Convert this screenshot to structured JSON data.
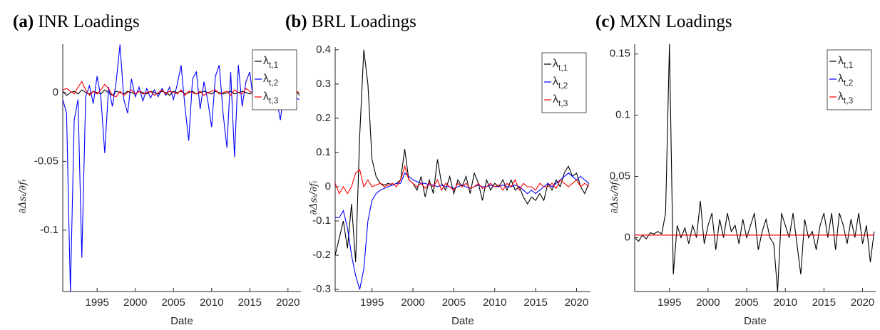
{
  "chart_data": [
    {
      "type": "line",
      "panel_label": "(a)",
      "title": "INR Loadings",
      "x_label": "Date",
      "y_label": "∂Δsₜ/∂fₜ",
      "xlim": [
        1990.5,
        2021.7
      ],
      "xticks": [
        1995,
        2000,
        2005,
        2010,
        2015,
        2020
      ],
      "ylim": [
        -0.1446,
        0.0352
      ],
      "yticks": [
        -0.1,
        -0.05,
        0
      ],
      "legend": "upper right",
      "x": [
        1990.5,
        1991,
        1991.5,
        1992,
        1992.5,
        1993,
        1993.5,
        1994,
        1994.5,
        1995,
        1995.5,
        1996,
        1996.5,
        1997,
        1997.5,
        1998,
        1998.5,
        1999,
        1999.5,
        2000,
        2000.5,
        2001,
        2001.5,
        2002,
        2002.5,
        2003,
        2003.5,
        2004,
        2004.5,
        2005,
        2005.5,
        2006,
        2006.5,
        2007,
        2007.5,
        2008,
        2008.5,
        2009,
        2009.5,
        2010,
        2010.5,
        2011,
        2011.5,
        2012,
        2012.5,
        2013,
        2013.5,
        2014,
        2014.5,
        2015,
        2015.5,
        2016,
        2016.5,
        2017,
        2017.5,
        2018,
        2018.5,
        2019,
        2019.5,
        2020,
        2020.5,
        2021,
        2021.5
      ],
      "series": [
        {
          "name": "λt,1",
          "color": "#000000",
          "values": [
            0.001,
            -0.002,
            0.0,
            0.001,
            -0.001,
            0.002,
            0.0,
            -0.001,
            0.001,
            0.0,
            -0.001,
            0.002,
            0.0,
            -0.002,
            0.001,
            0.0,
            -0.001,
            0.001,
            0.0,
            -0.001,
            0.001,
            0.0,
            -0.001,
            0.001,
            0.0,
            -0.001,
            0.001,
            0.0,
            -0.002,
            0.001,
            0.0,
            0.001,
            -0.001,
            0.0,
            0.001,
            -0.001,
            0.0,
            0.001,
            0.0,
            -0.001,
            0.001,
            0.0,
            -0.001,
            0.0,
            0.001,
            -0.001,
            0.0,
            0.001,
            0.0,
            -0.001,
            0.001,
            0.0,
            -0.001,
            0.001,
            0.0,
            -0.001,
            0.001,
            0.0,
            0.001,
            -0.001,
            0.0,
            0.002,
            -0.002
          ]
        },
        {
          "name": "λt,2",
          "color": "#0000ff",
          "values": [
            -0.005,
            -0.015,
            -0.145,
            -0.02,
            -0.005,
            -0.12,
            -0.003,
            0.005,
            -0.008,
            0.012,
            -0.004,
            -0.044,
            0.004,
            -0.01,
            0.008,
            0.035,
            -0.005,
            -0.015,
            0.01,
            -0.003,
            0.004,
            -0.006,
            0.003,
            -0.004,
            0.002,
            -0.003,
            0.003,
            -0.002,
            0.004,
            -0.005,
            0.006,
            0.02,
            -0.01,
            -0.035,
            0.01,
            0.015,
            -0.012,
            0.008,
            -0.006,
            -0.025,
            0.012,
            0.02,
            -0.015,
            -0.04,
            0.015,
            -0.047,
            0.02,
            -0.01,
            0.008,
            0.015,
            -0.008,
            -0.01,
            0.01,
            0.02,
            -0.005,
            0.003,
            -0.004,
            -0.02,
            0.002,
            -0.003,
            0.001,
            -0.004,
            -0.005
          ]
        },
        {
          "name": "λt,3",
          "color": "#ff0000",
          "values": [
            0.002,
            0.003,
            0.001,
            -0.001,
            0.004,
            0.008,
            0.002,
            -0.002,
            0.001,
            -0.001,
            0.002,
            0.006,
            0.003,
            -0.002,
            -0.003,
            0.001,
            -0.002,
            0.0,
            0.002,
            -0.001,
            0.001,
            -0.001,
            0.0,
            0.001,
            -0.002,
            0.0,
            0.002,
            -0.001,
            0.001,
            0.0,
            -0.001,
            0.002,
            -0.002,
            0.001,
            0.0,
            -0.001,
            0.001,
            -0.002,
            0.0,
            0.001,
            0.002,
            -0.001,
            0.0,
            0.001,
            -0.002,
            0.002,
            0.0,
            -0.001,
            0.003,
            0.001,
            -0.001,
            0.001,
            0.0,
            -0.002,
            0.001,
            0.0,
            0.002,
            -0.001,
            0.0,
            0.001,
            0.002,
            0.001,
            0.0
          ]
        }
      ]
    },
    {
      "type": "line",
      "panel_label": "(b)",
      "title": "BRL Loadings",
      "x_label": "Date",
      "y_label": "∂Δsₜ/∂fₜ",
      "xlim": [
        1990.5,
        2021.7
      ],
      "xticks": [
        1995,
        2000,
        2005,
        2010,
        2015,
        2020
      ],
      "ylim": [
        -0.306,
        0.408
      ],
      "yticks": [
        -0.3,
        -0.2,
        -0.1,
        0,
        0.1,
        0.2,
        0.3,
        0.4
      ],
      "legend": "upper right",
      "x": [
        1990.5,
        1991,
        1991.5,
        1992,
        1992.5,
        1993,
        1993.5,
        1994,
        1994.5,
        1995,
        1995.5,
        1996,
        1996.5,
        1997,
        1997.5,
        1998,
        1998.5,
        1999,
        1999.5,
        2000,
        2000.5,
        2001,
        2001.5,
        2002,
        2002.5,
        2003,
        2003.5,
        2004,
        2004.5,
        2005,
        2005.5,
        2006,
        2006.5,
        2007,
        2007.5,
        2008,
        2008.5,
        2009,
        2009.5,
        2010,
        2010.5,
        2011,
        2011.5,
        2012,
        2012.5,
        2013,
        2013.5,
        2014,
        2014.5,
        2015,
        2015.5,
        2016,
        2016.5,
        2017,
        2017.5,
        2018,
        2018.5,
        2019,
        2019.5,
        2020,
        2020.5,
        2021,
        2021.5
      ],
      "series": [
        {
          "name": "λt,1",
          "color": "#000000",
          "values": [
            -0.2,
            -0.15,
            -0.1,
            -0.18,
            -0.05,
            -0.22,
            0.15,
            0.4,
            0.3,
            0.08,
            0.03,
            0.01,
            0.005,
            0.01,
            0.005,
            0.01,
            0.02,
            0.11,
            0.02,
            0.01,
            -0.01,
            0.03,
            -0.03,
            0.02,
            -0.02,
            0.08,
            0.01,
            -0.01,
            0.03,
            -0.02,
            0.02,
            0.0,
            0.03,
            -0.02,
            0.04,
            0.01,
            -0.04,
            0.02,
            -0.01,
            0.01,
            0.0,
            0.02,
            -0.01,
            0.02,
            -0.01,
            0.0,
            -0.03,
            -0.05,
            -0.03,
            -0.04,
            -0.02,
            -0.04,
            0.01,
            -0.01,
            0.02,
            0.0,
            0.04,
            0.06,
            0.03,
            0.04,
            0.0,
            -0.02,
            0.01
          ]
        },
        {
          "name": "λt,2",
          "color": "#0000ff",
          "values": [
            -0.09,
            -0.09,
            -0.07,
            -0.12,
            -0.2,
            -0.26,
            -0.3,
            -0.24,
            -0.1,
            -0.04,
            -0.02,
            -0.01,
            -0.005,
            0,
            0.005,
            0.01,
            0.01,
            0.04,
            0.03,
            0.02,
            0.015,
            0.01,
            0.01,
            0.005,
            0.005,
            0,
            0.005,
            0,
            0,
            -0.005,
            0,
            0.005,
            0,
            -0.005,
            0,
            0.005,
            0,
            0,
            0.005,
            0,
            0,
            0.005,
            0,
            0,
            0.005,
            0,
            -0.01,
            -0.02,
            -0.01,
            -0.02,
            -0.01,
            0,
            0.01,
            0,
            0.01,
            0.02,
            0.03,
            0.04,
            0.03,
            0.02,
            0.03,
            0.02,
            0.01
          ]
        },
        {
          "name": "λt,3",
          "color": "#ff0000",
          "values": [
            0.01,
            -0.02,
            0,
            -0.02,
            0,
            0.04,
            0.05,
            0,
            0.02,
            0,
            0.005,
            0.01,
            0,
            0.005,
            0.01,
            0,
            0.02,
            0.06,
            0.02,
            0.01,
            0,
            0.01,
            -0.005,
            0.01,
            0,
            0.02,
            -0.01,
            0.01,
            0,
            -0.01,
            0.01,
            0,
            0.01,
            -0.005,
            0,
            0.01,
            -0.005,
            0,
            0.01,
            0,
            0.005,
            -0.01,
            0.01,
            0,
            0.02,
            -0.01,
            0.01,
            0,
            0,
            -0.01,
            0.01,
            0,
            0,
            0.01,
            -0.005,
            0.02,
            0.01,
            0,
            0.01,
            0.02,
            0,
            0.01,
            0
          ]
        }
      ]
    },
    {
      "type": "line",
      "panel_label": "(c)",
      "title": "MXN Loadings",
      "x_label": "Date",
      "y_label": "∂Δsₜ/∂fₜ",
      "xlim": [
        1990.5,
        2021.7
      ],
      "xticks": [
        1995,
        2000,
        2005,
        2010,
        2015,
        2020
      ],
      "ylim": [
        -0.044,
        0.158
      ],
      "yticks": [
        0,
        0.05,
        0.1,
        0.15
      ],
      "legend": "upper right",
      "x": [
        1990.5,
        1991,
        1991.5,
        1992,
        1992.5,
        1993,
        1993.5,
        1994,
        1994.5,
        1995,
        1995.5,
        1996,
        1996.5,
        1997,
        1997.5,
        1998,
        1998.5,
        1999,
        1999.5,
        2000,
        2000.5,
        2001,
        2001.5,
        2002,
        2002.5,
        2003,
        2003.5,
        2004,
        2004.5,
        2005,
        2005.5,
        2006,
        2006.5,
        2007,
        2007.5,
        2008,
        2008.5,
        2009,
        2009.5,
        2010,
        2010.5,
        2011,
        2011.5,
        2012,
        2012.5,
        2013,
        2013.5,
        2014,
        2014.5,
        2015,
        2015.5,
        2016,
        2016.5,
        2017,
        2017.5,
        2018,
        2018.5,
        2019,
        2019.5,
        2020,
        2020.5,
        2021,
        2021.5
      ],
      "series": [
        {
          "name": "λt,1",
          "color": "#000000",
          "values": [
            0,
            -0.003,
            0.002,
            -0.001,
            0.004,
            0.003,
            0.005,
            0.003,
            0.02,
            0.158,
            -0.03,
            0.01,
            0,
            0.008,
            -0.005,
            0.01,
            0,
            0.03,
            -0.005,
            0.01,
            0.02,
            -0.01,
            0.015,
            0,
            0.02,
            0.005,
            0.01,
            -0.005,
            0.015,
            0,
            0.01,
            0.02,
            -0.01,
            0.005,
            0.015,
            0,
            -0.005,
            -0.044,
            0.02,
            0.01,
            0,
            0.02,
            -0.005,
            -0.03,
            0.015,
            0,
            0.005,
            -0.01,
            0.01,
            0.02,
            0,
            0.02,
            -0.01,
            0.02,
            0.01,
            -0.005,
            0.015,
            0,
            0.02,
            -0.005,
            0.01,
            -0.02,
            0.005
          ]
        },
        {
          "name": "λt,2",
          "color": "#0000ff",
          "values": [
            0.002,
            0.002,
            0.002,
            0.002,
            0.002,
            0.002,
            0.002,
            0.002,
            0.002,
            0.002,
            0.002,
            0.002,
            0.002,
            0.002,
            0.002,
            0.002,
            0.002,
            0.002,
            0.002,
            0.002,
            0.002,
            0.002,
            0.002,
            0.002,
            0.002,
            0.002,
            0.002,
            0.002,
            0.002,
            0.002,
            0.002,
            0.002,
            0.002,
            0.002,
            0.002,
            0.002,
            0.002,
            0.002,
            0.002,
            0.002,
            0.002,
            0.002,
            0.002,
            0.002,
            0.002,
            0.002,
            0.002,
            0.002,
            0.002,
            0.002,
            0.002,
            0.002,
            0.002,
            0.002,
            0.002,
            0.002,
            0.002,
            0.002,
            0.002,
            0.002,
            0.002,
            0.002,
            0.002
          ]
        },
        {
          "name": "λt,3",
          "color": "#ff0000",
          "values": [
            0.002,
            0.002,
            0.002,
            0.002,
            0.002,
            0.002,
            0.002,
            0.002,
            0.002,
            0.002,
            0.002,
            0.002,
            0.002,
            0.002,
            0.002,
            0.002,
            0.002,
            0.002,
            0.002,
            0.002,
            0.002,
            0.002,
            0.002,
            0.002,
            0.002,
            0.002,
            0.002,
            0.002,
            0.002,
            0.002,
            0.002,
            0.002,
            0.002,
            0.002,
            0.002,
            0.002,
            0.002,
            0.002,
            0.002,
            0.002,
            0.002,
            0.002,
            0.002,
            0.002,
            0.002,
            0.002,
            0.002,
            0.002,
            0.002,
            0.002,
            0.002,
            0.002,
            0.002,
            0.002,
            0.002,
            0.002,
            0.002,
            0.002,
            0.002,
            0.002,
            0.002,
            0.002,
            0.002
          ]
        }
      ]
    }
  ]
}
